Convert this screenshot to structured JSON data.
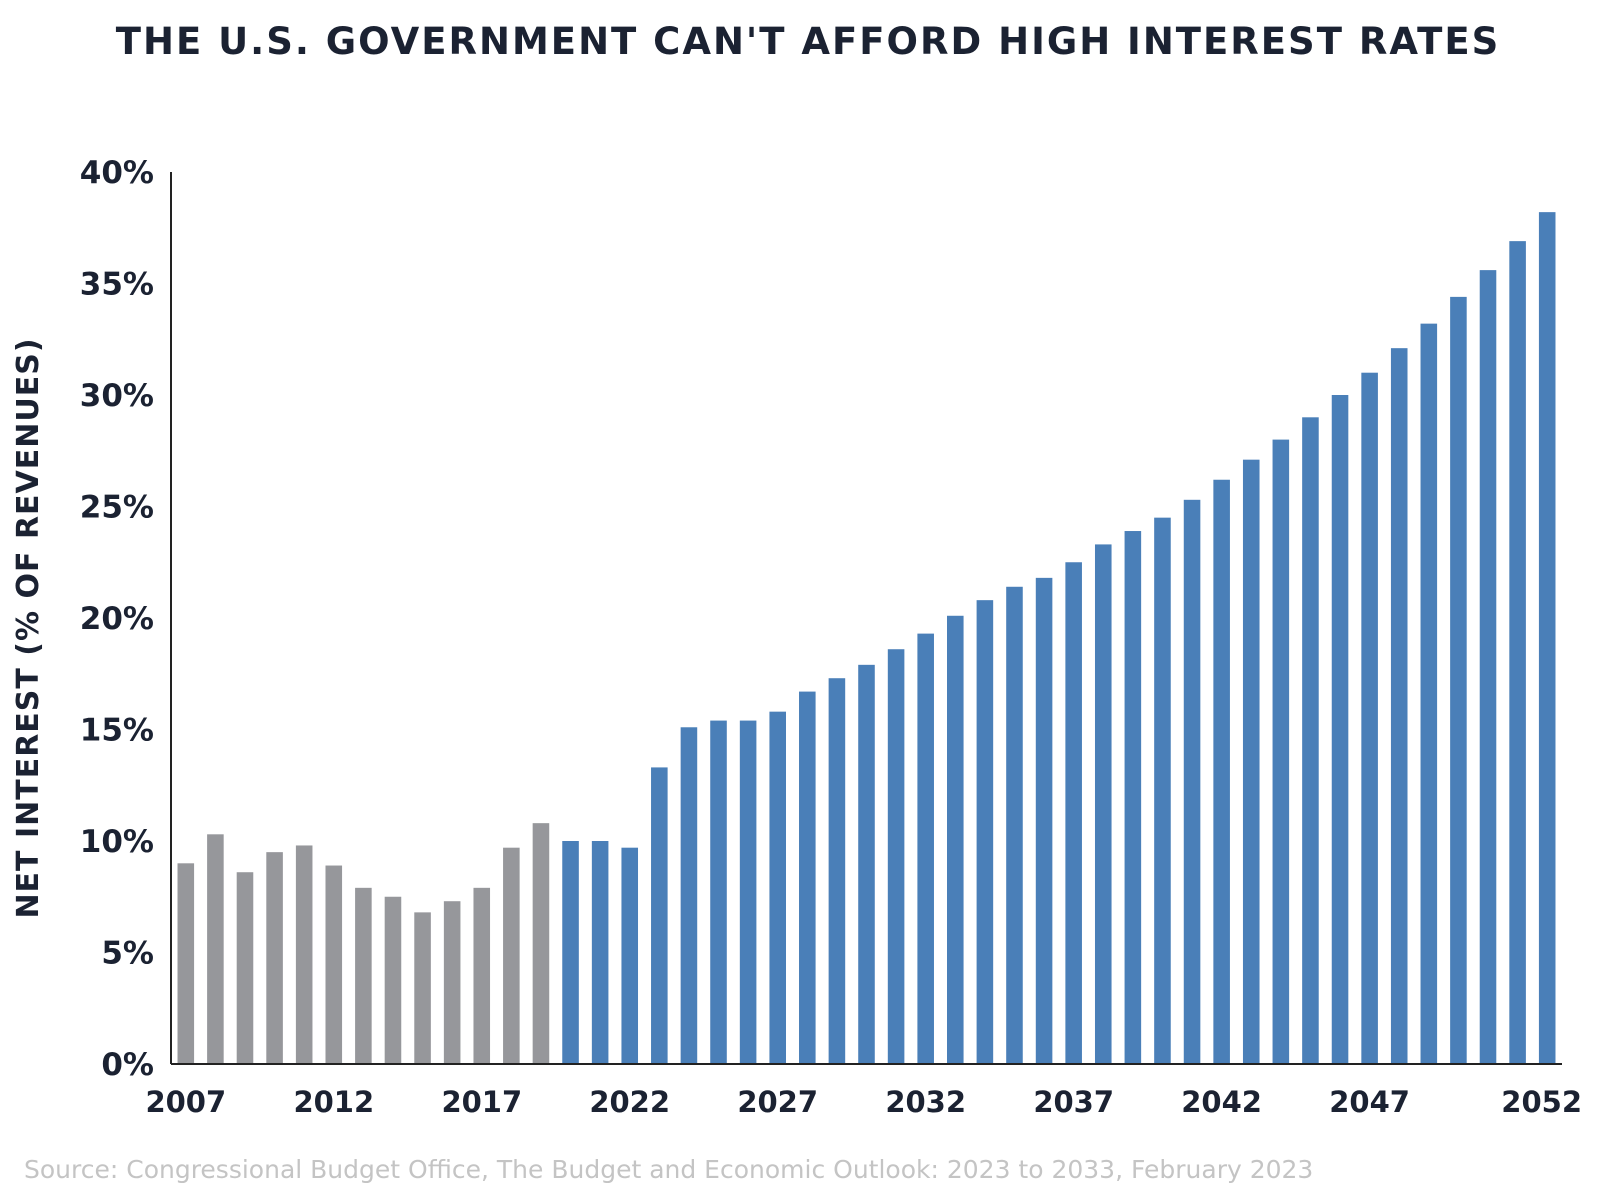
{
  "chart_data": {
    "type": "bar",
    "title": "THE U.S. GOVERNMENT CAN'T AFFORD HIGH INTEREST RATES",
    "ylabel": "NET INTEREST (% OF REVENUES)",
    "xlabel": "",
    "source": "Source: Congressional Budget Office, The Budget and Economic Outlook: 2023 to 2033, February 2023",
    "ylim": [
      0,
      40
    ],
    "yticks": [
      "0%",
      "5%",
      "10%",
      "15%",
      "20%",
      "25%",
      "30%",
      "35%",
      "40%"
    ],
    "x_tick_labels": [
      "2007",
      "2012",
      "2017",
      "2022",
      "2027",
      "2032",
      "2037",
      "2042",
      "2047",
      "2052"
    ],
    "grid": false,
    "colors": {
      "historical": "#96979b",
      "projected": "#4a7fb8",
      "axis": "#222222",
      "text": "#1b2232",
      "source": "#c4c4c4"
    },
    "categories": [
      "2007",
      "2008",
      "2009",
      "2010",
      "2011",
      "2012",
      "2013",
      "2014",
      "2015",
      "2016",
      "2017",
      "2018",
      "2019",
      "2020",
      "2021",
      "2022",
      "2023",
      "2024",
      "2025",
      "2026",
      "2027",
      "2028",
      "2029",
      "2030",
      "2031",
      "2032",
      "2033",
      "2034",
      "2035",
      "2036",
      "2037",
      "2038",
      "2039",
      "2040",
      "2041",
      "2042",
      "2043",
      "2044",
      "2045",
      "2046",
      "2047",
      "2048",
      "2049",
      "2050",
      "2051",
      "2052",
      "2053"
    ],
    "series": [
      {
        "name": "",
        "values": [
          9.0,
          10.3,
          8.6,
          9.5,
          9.8,
          8.9,
          7.9,
          7.5,
          6.8,
          7.3,
          7.9,
          9.7,
          10.8,
          10.0,
          10.0,
          9.7,
          13.3,
          15.1,
          15.4,
          15.4,
          15.8,
          16.7,
          17.3,
          17.9,
          18.6,
          19.3,
          20.1,
          20.8,
          21.4,
          21.8,
          22.5,
          23.3,
          23.9,
          24.5,
          25.3,
          26.2,
          27.1,
          28.0,
          29.0,
          30.0,
          31.0,
          32.1,
          33.2,
          34.4,
          35.6,
          36.9,
          38.2
        ],
        "historical_count": 13
      }
    ]
  }
}
